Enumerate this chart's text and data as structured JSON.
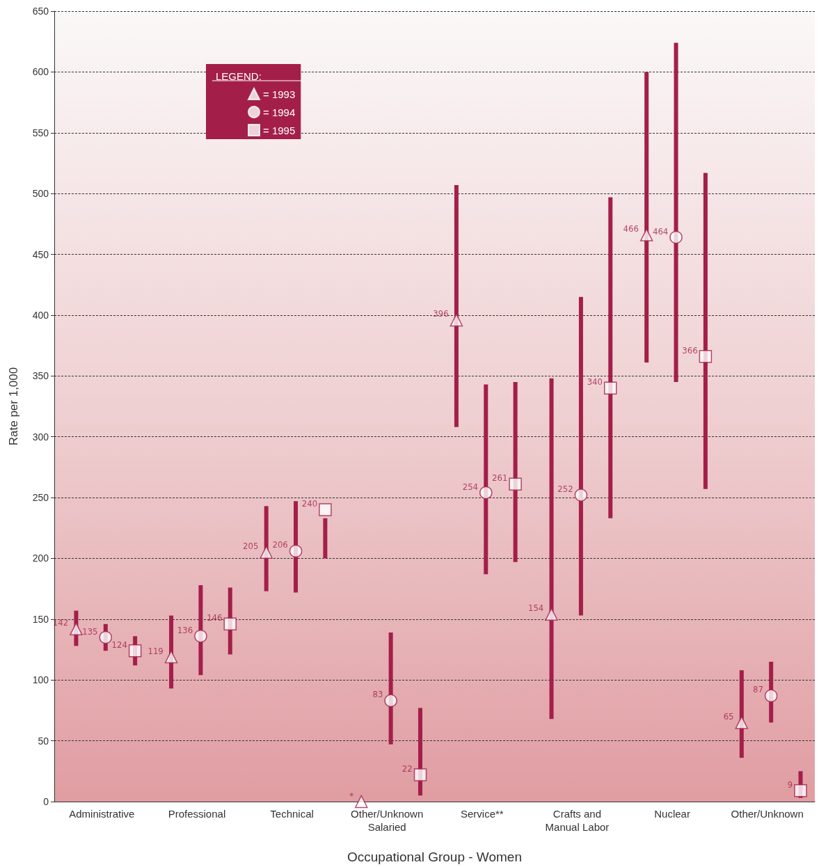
{
  "chart_data": {
    "type": "scatter",
    "xlabel": "Occupational Group - Women",
    "ylabel": "Rate per 1,000",
    "legend_title": "LEGEND:",
    "categories": [
      "Administrative",
      "Professional",
      "Technical",
      "Other/Unknown\nSalaried",
      "Service**",
      "Crafts and\nManual Labor",
      "Nuclear",
      "Other/Unknown"
    ],
    "series": [
      {
        "name": "= 1993",
        "color": "#a31f4a",
        "marker": "triangle",
        "values": [
          142,
          119,
          205,
          0,
          396,
          154,
          466,
          65
        ],
        "value_labels": [
          "142",
          "119",
          "205",
          "*",
          "396",
          "154",
          "466",
          "65"
        ],
        "errors": [
          [
            128,
            157
          ],
          [
            93,
            153
          ],
          [
            173,
            243
          ],
          null,
          [
            308,
            507
          ],
          [
            68,
            348
          ],
          [
            361,
            600
          ],
          [
            36,
            108
          ]
        ]
      },
      {
        "name": "= 1994",
        "color": "#a31f4a",
        "marker": "circle",
        "values": [
          135,
          136,
          206,
          83,
          254,
          252,
          464,
          87
        ],
        "value_labels": [
          "135",
          "136",
          "206",
          "83",
          "254",
          "252",
          "464",
          "87"
        ],
        "errors": [
          [
            124,
            146
          ],
          [
            104,
            178
          ],
          [
            172,
            247
          ],
          [
            47,
            139
          ],
          [
            187,
            343
          ],
          [
            153,
            415
          ],
          [
            345,
            624
          ],
          [
            65,
            115
          ]
        ]
      },
      {
        "name": "= 1995",
        "color": "#a31f4a",
        "marker": "square",
        "values": [
          124,
          146,
          240,
          22,
          261,
          340,
          366,
          9
        ],
        "value_labels": [
          "124",
          "146",
          "240",
          "22",
          "261",
          "340",
          "366",
          "9"
        ],
        "errors": [
          [
            112,
            136
          ],
          [
            121,
            176
          ],
          [
            200,
            233
          ],
          [
            5,
            77
          ],
          [
            197,
            345
          ],
          [
            233,
            497
          ],
          [
            257,
            517
          ],
          [
            3,
            25
          ]
        ]
      }
    ],
    "ylim": [
      0,
      650
    ],
    "yticks": [
      0,
      50,
      100,
      150,
      200,
      250,
      300,
      350,
      400,
      450,
      500,
      550,
      600,
      650
    ],
    "grid": "y",
    "legend": "top left"
  }
}
